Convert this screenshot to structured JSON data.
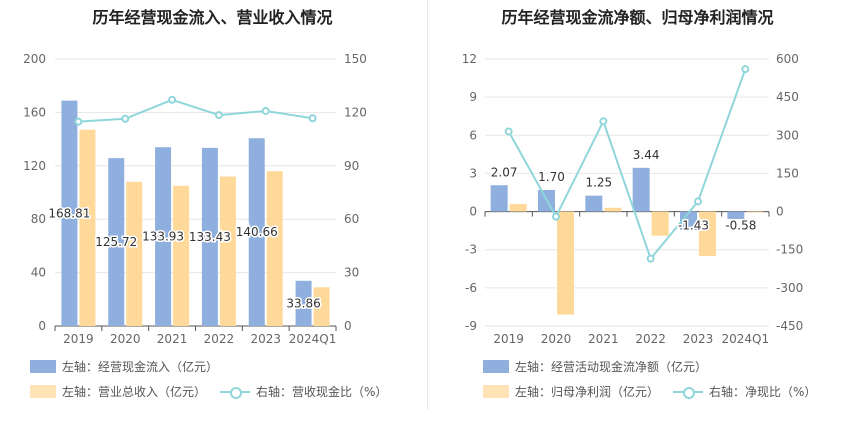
{
  "chart_data": [
    {
      "type": "bar",
      "title": "历年经营现金流入、营业收入情况",
      "categories": [
        "2019",
        "2020",
        "2021",
        "2022",
        "2023",
        "2024Q1"
      ],
      "series": [
        {
          "name": "左轴：经营现金流入（亿元）",
          "axis": "left",
          "values": [
            168.81,
            125.72,
            133.93,
            133.43,
            140.66,
            33.86
          ],
          "labels": [
            "168.81",
            "125.72",
            "133.93",
            "133.43",
            "140.66",
            "33.86"
          ],
          "color": "#8fb0de"
        },
        {
          "name": "左轴：营业总收入（亿元）",
          "axis": "left",
          "values": [
            147,
            108,
            105,
            112,
            116,
            29
          ],
          "color": "#ffd99a"
        },
        {
          "name": "右轴：营收现金比（%）",
          "axis": "right",
          "type": "line",
          "values": [
            114.8,
            116.4,
            127.1,
            118.5,
            120.8,
            116.7
          ],
          "color": "#8fd6da"
        }
      ],
      "left_axis": {
        "ylim": [
          0,
          200
        ],
        "ticks": [
          "0",
          "40",
          "80",
          "120",
          "160",
          "200"
        ]
      },
      "right_axis": {
        "ylim": [
          0,
          150
        ],
        "ticks": [
          "0",
          "30",
          "60",
          "90",
          "120",
          "150"
        ]
      },
      "grid": true,
      "legend_position": "bottom-left"
    },
    {
      "type": "bar",
      "title": "历年经营现金流净额、归母净利润情况",
      "categories": [
        "2019",
        "2020",
        "2021",
        "2022",
        "2023",
        "2024Q1"
      ],
      "series": [
        {
          "name": "左轴：经营活动现金流净额（亿元）",
          "axis": "left",
          "values": [
            2.07,
            1.7,
            1.25,
            3.44,
            -1.43,
            -0.58
          ],
          "labels": [
            "2.07",
            "1.70",
            "1.25",
            "3.44",
            "-1.43",
            "-0.58"
          ],
          "color": "#8fb0de"
        },
        {
          "name": "左轴：归母净利润（亿元）",
          "axis": "left",
          "values": [
            0.6,
            -8.1,
            0.3,
            -1.9,
            -3.5,
            -0.05
          ],
          "color": "#ffd99a"
        },
        {
          "name": "右轴：净现比（%）",
          "axis": "right",
          "type": "line",
          "values": [
            315,
            -20,
            355,
            -185,
            40,
            560
          ],
          "color": "#8fd6da"
        }
      ],
      "left_axis": {
        "ylim": [
          -9,
          12
        ],
        "ticks": [
          "-9",
          "-6",
          "-3",
          "0",
          "3",
          "6",
          "9",
          "12"
        ]
      },
      "right_axis": {
        "ylim": [
          -450,
          600
        ],
        "ticks": [
          "-450",
          "-300",
          "-150",
          "0",
          "150",
          "300",
          "450",
          "600"
        ]
      },
      "grid": true,
      "legend_position": "bottom-left"
    }
  ]
}
